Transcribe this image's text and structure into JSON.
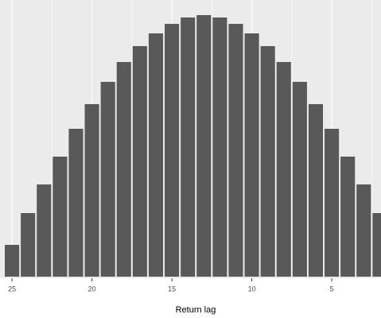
{
  "chart_data": {
    "type": "bar",
    "x": [
      25,
      24,
      23,
      22,
      21,
      20,
      19,
      18,
      17,
      16,
      15,
      14,
      13,
      12,
      11,
      10,
      9,
      8,
      7,
      6,
      5,
      4,
      3,
      2
    ],
    "values": [
      4.0,
      8.0,
      11.6,
      15.1,
      18.6,
      21.7,
      24.5,
      27.0,
      29.0,
      30.6,
      31.8,
      32.6,
      32.9,
      32.6,
      31.8,
      30.6,
      29.0,
      27.0,
      24.5,
      21.7,
      18.6,
      15.1,
      11.6,
      8.0
    ],
    "color": "#595959",
    "xlabel": "Return lag",
    "xlim": [
      25.75,
      1.92
    ],
    "xticks": [
      25,
      20,
      15,
      10,
      5
    ],
    "ylim": [
      -0.2,
      34.8
    ],
    "grid": true
  }
}
